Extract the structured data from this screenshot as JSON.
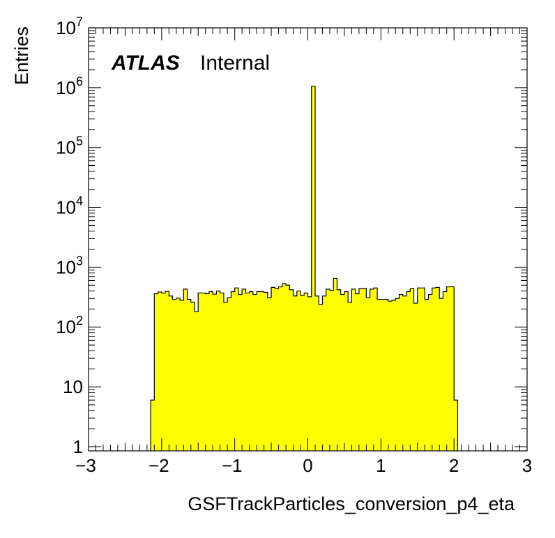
{
  "chart_data": {
    "type": "bar",
    "histogram": true,
    "fill_color": "#ffff00",
    "xlabel": "GSFTrackParticles_conversion_p4_eta",
    "ylabel": "Entries",
    "xlim": [
      -3,
      3
    ],
    "ylim": [
      0.85,
      10000000
    ],
    "yscale": "log",
    "x_ticks": [
      "−3",
      "−2",
      "−1",
      "0",
      "1",
      "2",
      "3"
    ],
    "y_ticks": [
      {
        "value": 1,
        "label": "1"
      },
      {
        "value": 10,
        "label": "10"
      },
      {
        "value": 100,
        "base": "10",
        "exp": "2"
      },
      {
        "value": 1000,
        "base": "10",
        "exp": "3"
      },
      {
        "value": 10000,
        "base": "10",
        "exp": "4"
      },
      {
        "value": 100000,
        "base": "10",
        "exp": "5"
      },
      {
        "value": 1000000,
        "base": "10",
        "exp": "6"
      },
      {
        "value": 10000000,
        "base": "10",
        "exp": "7"
      }
    ],
    "bin_width": 0.05,
    "x_start": -2.15,
    "values": [
      6,
      360,
      385,
      370,
      395,
      330,
      290,
      305,
      280,
      430,
      290,
      260,
      180,
      370,
      370,
      360,
      390,
      355,
      400,
      370,
      260,
      310,
      390,
      450,
      350,
      430,
      370,
      390,
      350,
      390,
      390,
      380,
      310,
      460,
      440,
      470,
      530,
      500,
      420,
      330,
      400,
      340,
      370,
      320,
      1060000,
      330,
      240,
      330,
      430,
      410,
      650,
      420,
      350,
      390,
      260,
      430,
      360,
      440,
      440,
      310,
      430,
      450,
      290,
      290,
      290,
      270,
      280,
      300,
      350,
      330,
      390,
      440,
      250,
      450,
      450,
      290,
      350,
      450,
      460,
      300,
      390,
      470,
      470,
      6
    ],
    "annotation": {
      "label_bold": "ATLAS",
      "label": "Internal"
    }
  }
}
